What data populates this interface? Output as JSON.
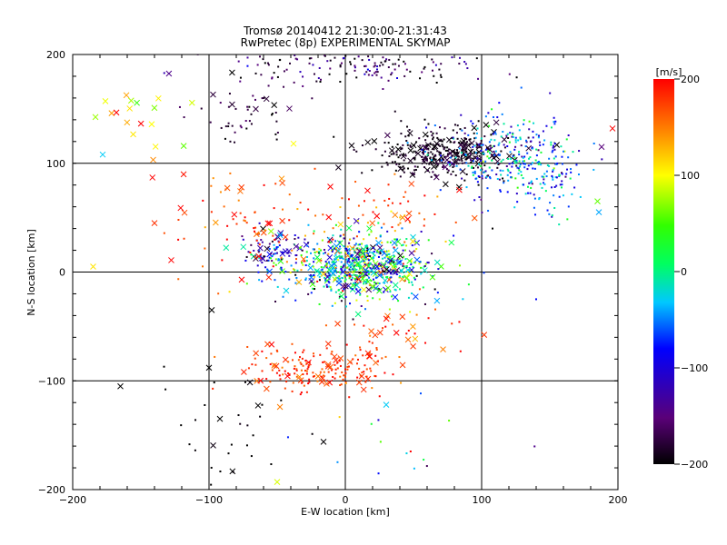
{
  "chart_data": {
    "type": "scatter",
    "title": "Tromsø 20140412 21:30:00-21:31:43",
    "subtitle": "RwPretec (8p) EXPERIMENTAL SKYMAP",
    "xlabel": "E-W location [km]",
    "ylabel": "N-S location [km]",
    "xlim": [
      -200,
      200
    ],
    "ylim": [
      -200,
      200
    ],
    "xticks": [
      -200,
      -100,
      0,
      100,
      200
    ],
    "yticks": [
      -200,
      -100,
      0,
      100,
      200
    ],
    "grid": true,
    "colorbar": {
      "label": "[m/s]",
      "range": [
        -200,
        200
      ],
      "ticks": [
        200,
        100,
        0,
        -100,
        -200
      ],
      "colormap": "rainbow (black-purple-blue-cyan-green-yellow-red)"
    },
    "clusters": [
      {
        "x": 10,
        "y": 5,
        "sx": 28,
        "sy": 15,
        "n": 700,
        "vmean": -20,
        "vspread": 150,
        "markers": "dot+cross"
      },
      {
        "x": 70,
        "y": 110,
        "sx": 25,
        "sy": 12,
        "n": 350,
        "vmean": -190,
        "vspread": 20,
        "markers": "dot+cross"
      },
      {
        "x": 120,
        "y": 105,
        "sx": 25,
        "sy": 18,
        "n": 300,
        "vmean": -60,
        "vspread": 90,
        "markers": "dot"
      },
      {
        "x": -20,
        "y": -90,
        "sx": 25,
        "sy": 10,
        "n": 180,
        "vmean": 180,
        "vspread": 30,
        "markers": "dot+cross"
      },
      {
        "x": 10,
        "y": 190,
        "sx": 50,
        "sy": 8,
        "n": 150,
        "vmean": -170,
        "vspread": 60,
        "markers": "dot"
      },
      {
        "x": -55,
        "y": 20,
        "sx": 12,
        "sy": 10,
        "n": 80,
        "vmean": -100,
        "vspread": 80,
        "markers": "dot+cross"
      },
      {
        "x": -70,
        "y": 45,
        "sx": 25,
        "sy": 30,
        "n": 80,
        "vmean": 180,
        "vspread": 40,
        "markers": "dot+cross"
      },
      {
        "x": 25,
        "y": 55,
        "sx": 25,
        "sy": 15,
        "n": 60,
        "vmean": 160,
        "vspread": 50,
        "markers": "dot+cross"
      },
      {
        "x": -75,
        "y": 145,
        "sx": 20,
        "sy": 15,
        "n": 50,
        "vmean": -180,
        "vspread": 30,
        "markers": "dot+cross"
      },
      {
        "x": 40,
        "y": -55,
        "sx": 25,
        "sy": 15,
        "n": 40,
        "vmean": 180,
        "vspread": 40,
        "markers": "dot+cross"
      },
      {
        "x": -80,
        "y": -150,
        "sx": 25,
        "sy": 25,
        "n": 30,
        "vmean": -200,
        "vspread": 10,
        "markers": "dot+cross"
      },
      {
        "x": -150,
        "y": 135,
        "sx": 20,
        "sy": 20,
        "n": 20,
        "vmean": 120,
        "vspread": 100,
        "markers": "cross"
      },
      {
        "x": 150,
        "y": 80,
        "sx": 12,
        "sy": 15,
        "n": 60,
        "vmean": -50,
        "vspread": 60,
        "markers": "dot"
      },
      {
        "x": 40,
        "y": -160,
        "sx": 40,
        "sy": 20,
        "n": 15,
        "vmean": 0,
        "vspread": 150,
        "markers": "dot"
      }
    ],
    "notable_points": [
      {
        "x": -185,
        "y": 5,
        "v": 110,
        "m": "x"
      },
      {
        "x": -178,
        "y": 108,
        "v": -30,
        "m": "x"
      },
      {
        "x": -165,
        "y": -105,
        "v": -200,
        "m": "x"
      },
      {
        "x": -140,
        "y": 45,
        "v": 180,
        "m": "x"
      },
      {
        "x": -133,
        "y": -87,
        "v": -200,
        "m": "dot"
      },
      {
        "x": -100,
        "y": -88,
        "v": -200,
        "m": "x"
      },
      {
        "x": -98,
        "y": -35,
        "v": -200,
        "m": "x"
      },
      {
        "x": -92,
        "y": -135,
        "v": -200,
        "m": "x"
      },
      {
        "x": -50,
        "y": -193,
        "v": 90,
        "m": "x"
      },
      {
        "x": -38,
        "y": 118,
        "v": 100,
        "m": "x"
      },
      {
        "x": 30,
        "y": -122,
        "v": -30,
        "m": "x"
      },
      {
        "x": 185,
        "y": 65,
        "v": 60,
        "m": "x"
      },
      {
        "x": 186,
        "y": 55,
        "v": -40,
        "m": "x"
      },
      {
        "x": 188,
        "y": 115,
        "v": -150,
        "m": "x"
      },
      {
        "x": 196,
        "y": 132,
        "v": 200,
        "m": "x"
      },
      {
        "x": 140,
        "y": -25,
        "v": -80,
        "m": "dot"
      },
      {
        "x": 108,
        "y": 40,
        "v": -200,
        "m": "dot"
      }
    ]
  }
}
